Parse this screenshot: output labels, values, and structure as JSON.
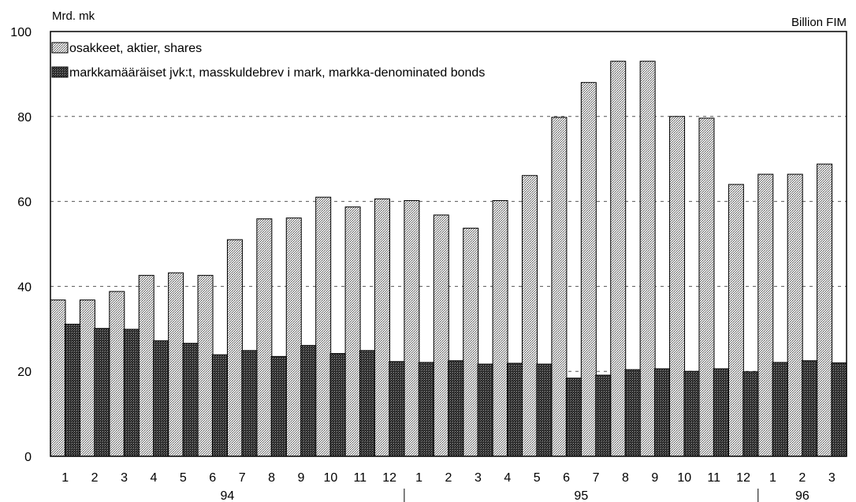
{
  "chart_data": {
    "type": "bar",
    "left_unit": "Mrd. mk",
    "right_unit": "Billion FIM",
    "ylim": [
      0,
      100
    ],
    "yticks": [
      0,
      20,
      40,
      60,
      80,
      100
    ],
    "grid": true,
    "legend_position": "top-left",
    "categories": [
      "1",
      "2",
      "3",
      "4",
      "5",
      "6",
      "7",
      "8",
      "9",
      "10",
      "11",
      "12",
      "1",
      "2",
      "3",
      "4",
      "5",
      "6",
      "7",
      "8",
      "9",
      "10",
      "11",
      "12",
      "1",
      "2",
      "3"
    ],
    "years": [
      {
        "label": "94",
        "start": 0,
        "end": 11
      },
      {
        "label": "95",
        "start": 12,
        "end": 23
      },
      {
        "label": "96",
        "start": 24,
        "end": 26
      }
    ],
    "series": [
      {
        "name": "osakkeet, aktier, shares",
        "color": "#c8c8c8",
        "pattern": "light",
        "values": [
          36.8,
          36.8,
          38.8,
          42.6,
          43.2,
          42.6,
          51.0,
          55.9,
          56.1,
          61.0,
          58.7,
          60.6,
          60.2,
          56.8,
          53.7,
          60.2,
          66.1,
          79.8,
          88.0,
          93.0,
          93.0,
          80.0,
          79.6,
          64.0,
          66.4,
          66.4,
          68.8
        ]
      },
      {
        "name": "markkamääräiset jvk:t, masskuldebrev i mark, markka-denominated bonds",
        "color": "#3a3a3a",
        "pattern": "dark",
        "values": [
          31.1,
          30.1,
          29.9,
          27.2,
          26.6,
          23.9,
          24.9,
          23.5,
          26.1,
          24.2,
          24.9,
          22.3,
          22.1,
          22.5,
          21.7,
          21.9,
          21.7,
          18.4,
          19.1,
          20.4,
          20.6,
          20.0,
          20.6,
          19.9,
          22.1,
          22.5,
          22.0
        ]
      }
    ]
  }
}
